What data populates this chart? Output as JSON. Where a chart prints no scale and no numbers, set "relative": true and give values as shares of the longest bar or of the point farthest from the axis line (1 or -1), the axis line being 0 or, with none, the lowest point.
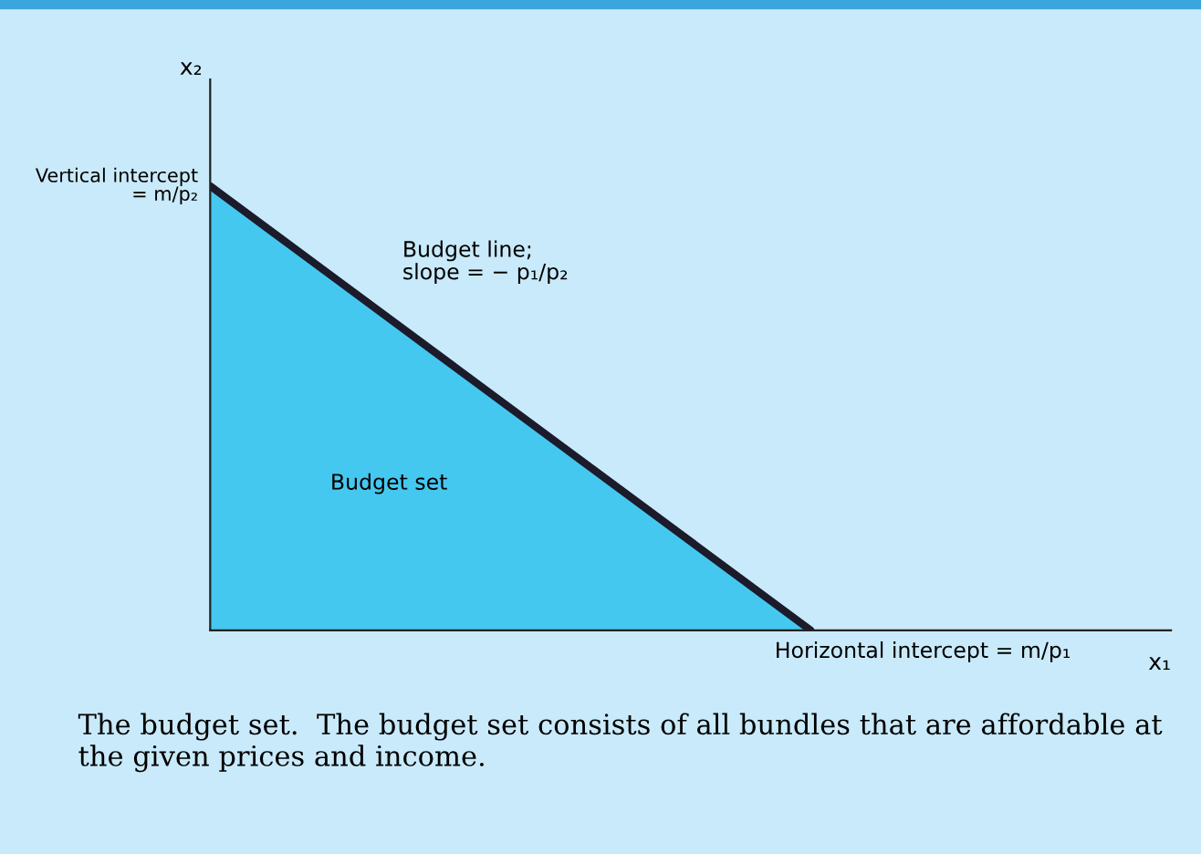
{
  "chart_data": {
    "type": "area",
    "relative": true,
    "xlabel": "x₁",
    "ylabel": "x₂",
    "categories": [
      null,
      null,
      null,
      null,
      null,
      null,
      null,
      null,
      null
    ],
    "series": [
      {
        "color": "#45c8f0",
        "values": [
          1,
          0.8,
          0.6,
          0.4,
          0.2,
          0,
          null,
          null,
          null
        ]
      }
    ],
    "annotations": [
      "Vertical intercept\n= m/p₂",
      "Budget line;\nslope = − p₁/p₂",
      "Budget set",
      "Horizontal intercept = m/p₁",
      "The budget set.  The budget set consists of all bundles that are affordable at the given prices and income."
    ],
    "line_style": "solid"
  }
}
